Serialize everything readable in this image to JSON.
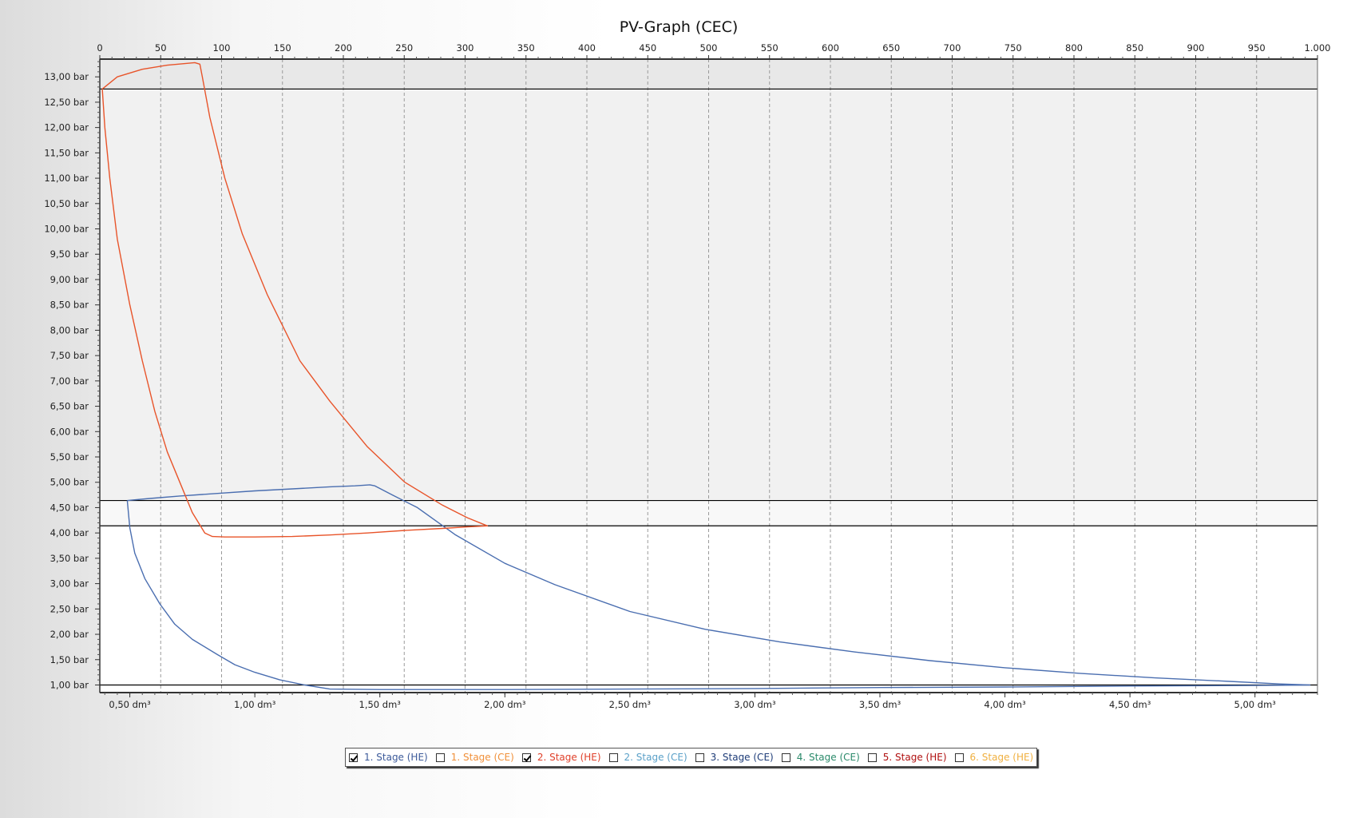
{
  "chart_data": {
    "type": "line",
    "title": "PV-Graph (CEC)",
    "top_axis": {
      "range": [
        0,
        1000
      ],
      "ticks": [
        "0",
        "50",
        "100",
        "150",
        "200",
        "250",
        "300",
        "350",
        "400",
        "450",
        "500",
        "550",
        "600",
        "650",
        "700",
        "750",
        "800",
        "850",
        "900",
        "950",
        "1.000"
      ]
    },
    "x_axis": {
      "unit": "dm³",
      "range": [
        0.38,
        5.25
      ],
      "tick_values": [
        0.5,
        1.0,
        1.5,
        2.0,
        2.5,
        3.0,
        3.5,
        4.0,
        4.5,
        5.0
      ],
      "tick_labels": [
        "0,50 dm³",
        "1,00 dm³",
        "1,50 dm³",
        "2,00 dm³",
        "2,50 dm³",
        "3,00 dm³",
        "3,50 dm³",
        "4,00 dm³",
        "4,50 dm³",
        "5,00 dm³"
      ]
    },
    "y_axis": {
      "unit": "bar",
      "range": [
        0.85,
        13.35
      ],
      "tick_values": [
        1.0,
        1.5,
        2.0,
        2.5,
        3.0,
        3.5,
        4.0,
        4.5,
        5.0,
        5.5,
        6.0,
        6.5,
        7.0,
        7.5,
        8.0,
        8.5,
        9.0,
        9.5,
        10.0,
        10.5,
        11.0,
        11.5,
        12.0,
        12.5,
        13.0
      ],
      "tick_labels": [
        "1,00 bar",
        "1,50 bar",
        "2,00 bar",
        "2,50 bar",
        "3,00 bar",
        "3,50 bar",
        "4,00 bar",
        "4,50 bar",
        "5,00 bar",
        "5,50 bar",
        "6,00 bar",
        "6,50 bar",
        "7,00 bar",
        "7,50 bar",
        "8,00 bar",
        "8,50 bar",
        "9,00 bar",
        "9,50 bar",
        "10,00 bar",
        "10,50 bar",
        "11,00 bar",
        "11,50 bar",
        "12,00 bar",
        "12,50 bar",
        "13,00 bar"
      ]
    },
    "grid": {
      "vertical": "dashed",
      "horizontal": "none"
    },
    "reference_lines_bar": [
      12.76,
      4.64,
      4.14,
      1.0
    ],
    "background_bands": [
      {
        "from": 12.76,
        "to": 13.35,
        "color": "#e8e8e8"
      },
      {
        "from": 4.64,
        "to": 12.76,
        "color": "#f1f1f1"
      },
      {
        "from": 4.14,
        "to": 4.64,
        "color": "#f8f8f8"
      },
      {
        "from": 0.85,
        "to": 4.14,
        "color": "#ffffff"
      }
    ],
    "series": [
      {
        "name": "1. Stage (HE)",
        "color": "#4a6eb0",
        "points": [
          [
            0.49,
            4.64
          ],
          [
            0.58,
            4.68
          ],
          [
            0.7,
            4.73
          ],
          [
            0.85,
            4.78
          ],
          [
            1.0,
            4.83
          ],
          [
            1.15,
            4.87
          ],
          [
            1.3,
            4.91
          ],
          [
            1.4,
            4.93
          ],
          [
            1.46,
            4.95
          ],
          [
            1.48,
            4.93
          ],
          [
            1.55,
            4.75
          ],
          [
            1.65,
            4.5
          ],
          [
            1.8,
            3.97
          ],
          [
            2.0,
            3.4
          ],
          [
            2.2,
            2.98
          ],
          [
            2.5,
            2.45
          ],
          [
            2.8,
            2.1
          ],
          [
            3.1,
            1.85
          ],
          [
            3.4,
            1.65
          ],
          [
            3.7,
            1.48
          ],
          [
            4.0,
            1.34
          ],
          [
            4.3,
            1.23
          ],
          [
            4.6,
            1.14
          ],
          [
            4.9,
            1.07
          ],
          [
            5.1,
            1.02
          ],
          [
            5.22,
            1.0
          ],
          [
            5.0,
            0.99
          ],
          [
            4.5,
            0.98
          ],
          [
            4.0,
            0.96
          ],
          [
            3.5,
            0.95
          ],
          [
            3.0,
            0.93
          ],
          [
            2.5,
            0.92
          ],
          [
            2.0,
            0.91
          ],
          [
            1.5,
            0.91
          ],
          [
            1.3,
            0.92
          ],
          [
            1.2,
            1.0
          ],
          [
            1.1,
            1.1
          ],
          [
            1.0,
            1.25
          ],
          [
            0.92,
            1.4
          ],
          [
            0.85,
            1.6
          ],
          [
            0.75,
            1.9
          ],
          [
            0.68,
            2.2
          ],
          [
            0.62,
            2.6
          ],
          [
            0.56,
            3.1
          ],
          [
            0.52,
            3.6
          ],
          [
            0.5,
            4.1
          ],
          [
            0.49,
            4.64
          ]
        ]
      },
      {
        "name": "2. Stage (HE)",
        "color": "#e8542a",
        "points": [
          [
            0.39,
            12.76
          ],
          [
            0.45,
            13.0
          ],
          [
            0.55,
            13.15
          ],
          [
            0.65,
            13.23
          ],
          [
            0.76,
            13.28
          ],
          [
            0.78,
            13.25
          ],
          [
            0.79,
            13.0
          ],
          [
            0.82,
            12.2
          ],
          [
            0.88,
            11.0
          ],
          [
            0.95,
            9.9
          ],
          [
            1.05,
            8.7
          ],
          [
            1.18,
            7.4
          ],
          [
            1.3,
            6.6
          ],
          [
            1.45,
            5.7
          ],
          [
            1.6,
            5.0
          ],
          [
            1.75,
            4.55
          ],
          [
            1.85,
            4.3
          ],
          [
            1.93,
            4.14
          ],
          [
            1.85,
            4.12
          ],
          [
            1.75,
            4.09
          ],
          [
            1.6,
            4.05
          ],
          [
            1.45,
            4.0
          ],
          [
            1.3,
            3.96
          ],
          [
            1.15,
            3.93
          ],
          [
            1.0,
            3.92
          ],
          [
            0.88,
            3.92
          ],
          [
            0.83,
            3.93
          ],
          [
            0.8,
            4.0
          ],
          [
            0.75,
            4.4
          ],
          [
            0.7,
            5.0
          ],
          [
            0.65,
            5.6
          ],
          [
            0.6,
            6.4
          ],
          [
            0.55,
            7.4
          ],
          [
            0.5,
            8.5
          ],
          [
            0.45,
            9.8
          ],
          [
            0.42,
            11.0
          ],
          [
            0.4,
            12.0
          ],
          [
            0.39,
            12.76
          ]
        ]
      }
    ],
    "legend": {
      "placement": "bottom-center",
      "items": [
        {
          "label": "1. Stage (HE)",
          "checked": true,
          "color": "#3c5a9a"
        },
        {
          "label": "1. Stage (CE)",
          "checked": false,
          "color": "#f0903a"
        },
        {
          "label": "2. Stage (HE)",
          "checked": true,
          "color": "#e0402a"
        },
        {
          "label": "2. Stage (CE)",
          "checked": false,
          "color": "#5aa0c8"
        },
        {
          "label": "3. Stage (CE)",
          "checked": false,
          "color": "#1e3c78"
        },
        {
          "label": "4. Stage (CE)",
          "checked": false,
          "color": "#2a8a6a"
        },
        {
          "label": "5. Stage (HE)",
          "checked": false,
          "color": "#b01010"
        },
        {
          "label": "6. Stage (HE)",
          "checked": false,
          "color": "#f0b040"
        }
      ]
    }
  }
}
